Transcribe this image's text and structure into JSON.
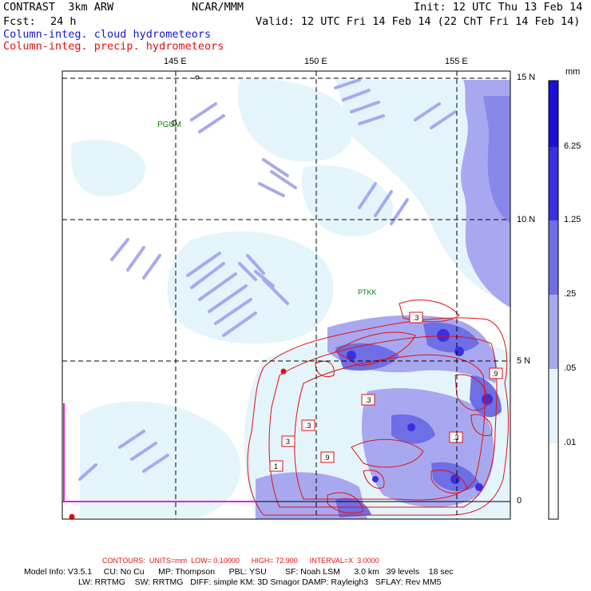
{
  "header": {
    "model": "CONTRAST  3km ARW",
    "org": "NCAR/MMM",
    "init": "Init: 12 UTC Thu 13 Feb 14",
    "fcst_label": "Fcst:",
    "fcst_value": "24 h",
    "valid": "Valid: 12 UTC Fri 14 Feb 14 (22 ChT Fri 14 Feb 14)",
    "legend_cloud": "Column-integ. cloud hydrometeors",
    "legend_precip": "Column-integ. precip. hydrometeors"
  },
  "map": {
    "lon_labels": [
      "145 E",
      "150 E",
      "155 E"
    ],
    "lat_labels": [
      "15 N",
      "10 N",
      "5 N",
      "0"
    ],
    "stations": [
      "PGUM",
      "PTKK"
    ],
    "contour_labels": [
      ".3",
      ".3",
      ".9",
      ".3",
      ".3",
      "3",
      "1",
      ".9"
    ]
  },
  "colorbar": {
    "units": "mm",
    "ticks": [
      "6.25",
      "1.25",
      ".25",
      ".05",
      ".01"
    ],
    "colors": [
      "#1a10d8",
      "#3a30e0",
      "#6e6ee6",
      "#a8a8f0",
      "#e4f4fb",
      "#ffffff"
    ]
  },
  "footer": {
    "contours": "CONTOURS:  UNITS=mm  LOW= 0.10000      HIGH= 72.900      INTERVAL=X  3.0000",
    "model_info_1": "Model Info: V3.5.1     CU: No Cu      MP: Thompson      PBL: YSU        SF: Noah LSM      3.0 km   39 levels    18 sec",
    "model_info_2": "LW: RRTMG    SW: RRTMG   DIFF: simple KM: 3D Smagor DAMP: Rayleigh3   SFLAY: Rev MM5"
  }
}
